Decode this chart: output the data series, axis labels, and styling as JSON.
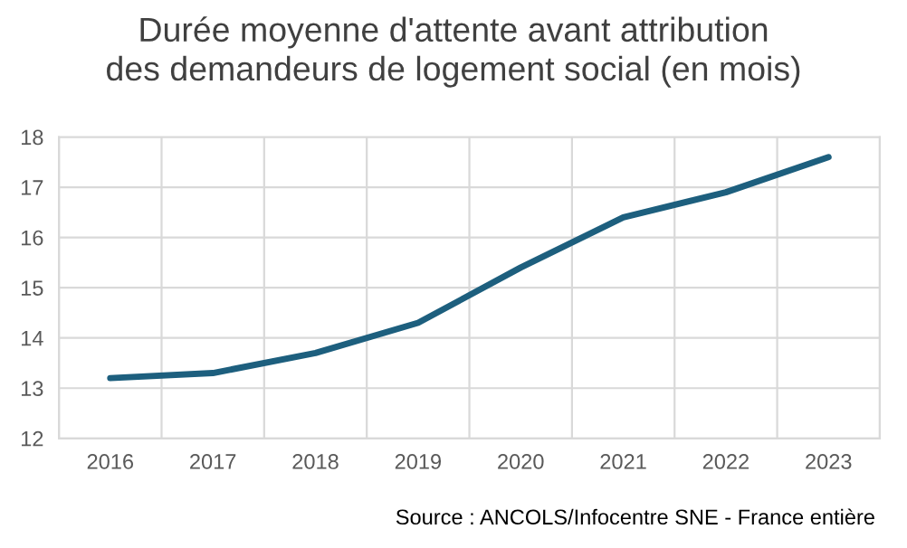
{
  "chart_data": {
    "type": "line",
    "title": "Durée moyenne d'attente avant attribution\ndes demandeurs de logement social (en mois)",
    "categories": [
      "2016",
      "2017",
      "2018",
      "2019",
      "2020",
      "2021",
      "2022",
      "2023"
    ],
    "series": [
      {
        "color": "#1d5f7e",
        "values": [
          13.2,
          13.3,
          13.7,
          14.3,
          15.4,
          16.4,
          16.9,
          17.6
        ]
      }
    ],
    "ylim": [
      12,
      18
    ],
    "yticks": [
      12,
      13,
      14,
      15,
      16,
      17,
      18
    ],
    "grid": true,
    "legend": false,
    "annotations": [
      "Source : ANCOLS/Infocentre SNE - France entière"
    ]
  }
}
